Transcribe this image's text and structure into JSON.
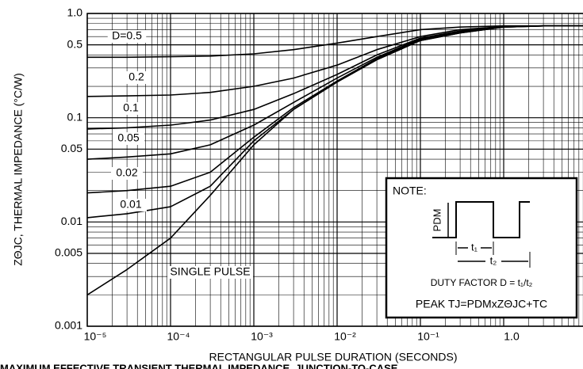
{
  "chart_data": {
    "type": "line",
    "y_label": "ZΘJC, THERMAL IMPEDANCE (°C/W)",
    "x_label": "RECTANGULAR PULSE DURATION (SECONDS)",
    "caption": "MAXIMUM EFFECTIVE TRANSIENT THERMAL IMPEDANCE, JUNCTION-TO-CASE",
    "x_log": true,
    "y_log": true,
    "grid": true,
    "minor_grid": true,
    "xlim": [
      1e-05,
      10
    ],
    "ylim": [
      0.001,
      1
    ],
    "xticks": [
      {
        "value": 1e-05,
        "label": "10⁻⁵"
      },
      {
        "value": 0.0001,
        "label": "10⁻⁴"
      },
      {
        "value": 0.001,
        "label": "10⁻³"
      },
      {
        "value": 0.01,
        "label": "10⁻²"
      },
      {
        "value": 0.1,
        "label": "10⁻¹"
      },
      {
        "value": 1,
        "label": "1.0"
      },
      10
    ],
    "yticks": [
      {
        "value": 1,
        "label": "1.0"
      },
      0.5,
      0.1,
      0.05,
      0.01,
      0.005,
      0.001
    ],
    "x": [
      1e-05,
      3e-05,
      0.0001,
      0.0003,
      0.001,
      0.003,
      0.01,
      0.03,
      0.1,
      0.3,
      1,
      3,
      10
    ],
    "series": [
      {
        "name": "D=0.5",
        "color": "#000000",
        "values": [
          0.38,
          0.38,
          0.385,
          0.39,
          0.41,
          0.45,
          0.52,
          0.6,
          0.7,
          0.74,
          0.76,
          0.76,
          0.76
        ]
      },
      {
        "name": "0.2",
        "color": "#000000",
        "values": [
          0.16,
          0.162,
          0.165,
          0.175,
          0.2,
          0.24,
          0.32,
          0.45,
          0.6,
          0.7,
          0.75,
          0.76,
          0.76
        ]
      },
      {
        "name": "0.1",
        "color": "#000000",
        "values": [
          0.078,
          0.08,
          0.085,
          0.095,
          0.12,
          0.17,
          0.26,
          0.4,
          0.58,
          0.68,
          0.75,
          0.76,
          0.76
        ]
      },
      {
        "name": "0.05",
        "color": "#000000",
        "values": [
          0.04,
          0.042,
          0.045,
          0.055,
          0.085,
          0.14,
          0.24,
          0.38,
          0.57,
          0.67,
          0.75,
          0.76,
          0.76
        ]
      },
      {
        "name": "0.02",
        "color": "#000000",
        "values": [
          0.019,
          0.02,
          0.022,
          0.03,
          0.065,
          0.125,
          0.225,
          0.37,
          0.56,
          0.66,
          0.74,
          0.76,
          0.76
        ]
      },
      {
        "name": "0.01",
        "color": "#000000",
        "values": [
          0.011,
          0.012,
          0.014,
          0.022,
          0.06,
          0.12,
          0.22,
          0.36,
          0.55,
          0.65,
          0.74,
          0.76,
          0.76
        ]
      },
      {
        "name": "SINGLE PULSE",
        "color": "#000000",
        "values": [
          0.002,
          0.0035,
          0.007,
          0.018,
          0.055,
          0.12,
          0.22,
          0.36,
          0.55,
          0.65,
          0.74,
          0.76,
          0.76
        ]
      }
    ],
    "note": {
      "title": "NOTE:",
      "pdm": "PDM",
      "t1": "t₁",
      "t2": "t₂",
      "duty": "DUTY FACTOR D = t₁/t₂",
      "peak": "PEAK TJ=PDMxZΘJC+TC"
    }
  }
}
